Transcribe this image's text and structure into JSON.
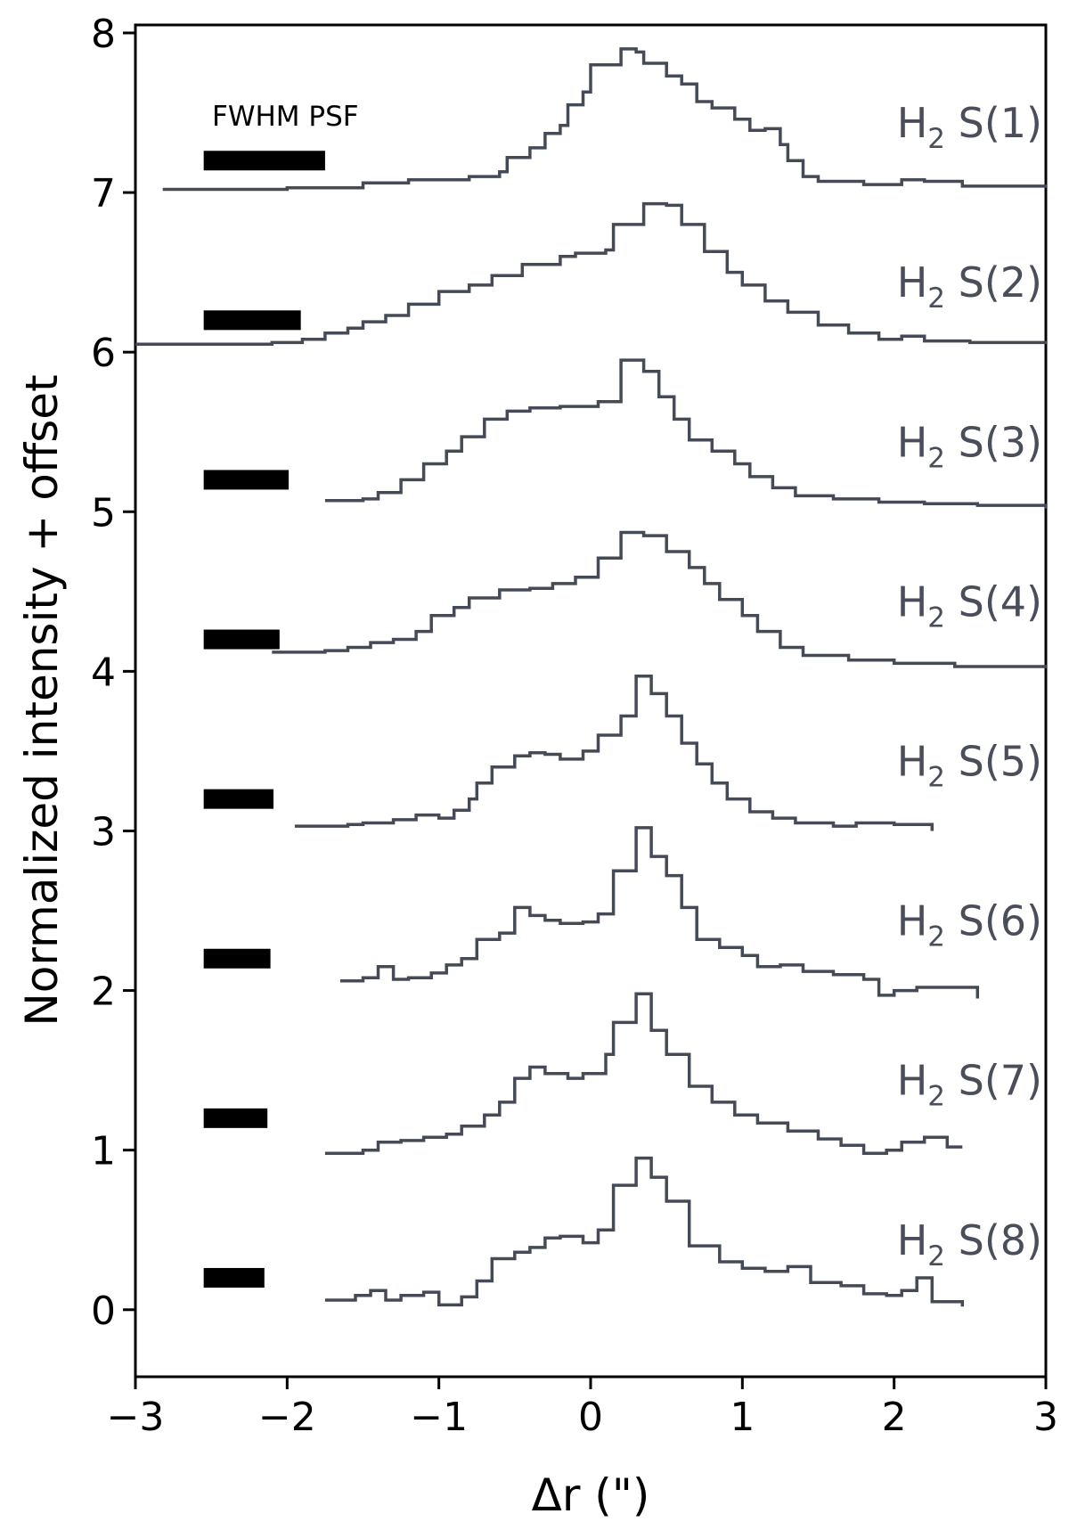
{
  "chart_data": {
    "type": "line",
    "title": "",
    "xlabel": "Δr (\")",
    "ylabel": "Normalized intensity + offset",
    "xlim": [
      -3,
      3
    ],
    "ylim": [
      -0.42,
      8.05
    ],
    "x_ticks": [
      -3,
      -2,
      -1,
      0,
      1,
      2,
      3
    ],
    "x_tick_labels": [
      "−3",
      "−2",
      "−1",
      "0",
      "1",
      "2",
      "3"
    ],
    "y_ticks": [
      0,
      1,
      2,
      3,
      4,
      5,
      6,
      7,
      8
    ],
    "y_tick_labels": [
      "0",
      "1",
      "2",
      "3",
      "4",
      "5",
      "6",
      "7",
      "8"
    ],
    "psf_label": "FWHM PSF",
    "line_color": "#454a57",
    "psf_color": "#000000",
    "series": [
      {
        "label_main": "H",
        "label_sub": "2",
        "label_rest": " S(1)",
        "offset": 7,
        "psf_width": 0.8,
        "points": [
          [
            -2.82,
            7.02
          ],
          [
            -2.0,
            7.03
          ],
          [
            -1.5,
            7.06
          ],
          [
            -1.2,
            7.08
          ],
          [
            -0.8,
            7.1
          ],
          [
            -0.6,
            7.13
          ],
          [
            -0.55,
            7.22
          ],
          [
            -0.4,
            7.28
          ],
          [
            -0.3,
            7.37
          ],
          [
            -0.2,
            7.42
          ],
          [
            -0.15,
            7.55
          ],
          [
            -0.05,
            7.63
          ],
          [
            0.0,
            7.8
          ],
          [
            0.2,
            7.9
          ],
          [
            0.3,
            7.88
          ],
          [
            0.35,
            7.81
          ],
          [
            0.5,
            7.73
          ],
          [
            0.6,
            7.68
          ],
          [
            0.7,
            7.57
          ],
          [
            0.8,
            7.53
          ],
          [
            0.95,
            7.46
          ],
          [
            1.05,
            7.39
          ],
          [
            1.15,
            7.4
          ],
          [
            1.25,
            7.3
          ],
          [
            1.3,
            7.2
          ],
          [
            1.4,
            7.1
          ],
          [
            1.5,
            7.07
          ],
          [
            1.8,
            7.05
          ],
          [
            2.05,
            7.08
          ],
          [
            2.2,
            7.07
          ],
          [
            2.45,
            7.04
          ],
          [
            3.0,
            7.03
          ]
        ]
      },
      {
        "label_main": "H",
        "label_sub": "2",
        "label_rest": " S(2)",
        "offset": 6,
        "psf_width": 0.64,
        "points": [
          [
            -3.0,
            6.05
          ],
          [
            -2.5,
            6.05
          ],
          [
            -2.1,
            6.06
          ],
          [
            -1.9,
            6.08
          ],
          [
            -1.75,
            6.12
          ],
          [
            -1.6,
            6.15
          ],
          [
            -1.5,
            6.19
          ],
          [
            -1.35,
            6.23
          ],
          [
            -1.2,
            6.3
          ],
          [
            -1.0,
            6.38
          ],
          [
            -0.8,
            6.42
          ],
          [
            -0.65,
            6.48
          ],
          [
            -0.45,
            6.55
          ],
          [
            -0.3,
            6.55
          ],
          [
            -0.2,
            6.6
          ],
          [
            -0.1,
            6.62
          ],
          [
            0.1,
            6.64
          ],
          [
            0.15,
            6.8
          ],
          [
            0.35,
            6.93
          ],
          [
            0.5,
            6.92
          ],
          [
            0.6,
            6.8
          ],
          [
            0.75,
            6.63
          ],
          [
            0.9,
            6.5
          ],
          [
            1.0,
            6.42
          ],
          [
            1.15,
            6.32
          ],
          [
            1.3,
            6.25
          ],
          [
            1.5,
            6.17
          ],
          [
            1.7,
            6.12
          ],
          [
            1.9,
            6.08
          ],
          [
            2.05,
            6.1
          ],
          [
            2.2,
            6.07
          ],
          [
            2.5,
            6.06
          ],
          [
            3.0,
            6.05
          ]
        ]
      },
      {
        "label_main": "H",
        "label_sub": "2",
        "label_rest": " S(3)",
        "offset": 5,
        "psf_width": 0.56,
        "points": [
          [
            -1.75,
            5.07
          ],
          [
            -1.5,
            5.08
          ],
          [
            -1.4,
            5.12
          ],
          [
            -1.25,
            5.2
          ],
          [
            -1.1,
            5.3
          ],
          [
            -0.95,
            5.38
          ],
          [
            -0.85,
            5.47
          ],
          [
            -0.7,
            5.58
          ],
          [
            -0.55,
            5.63
          ],
          [
            -0.4,
            5.65
          ],
          [
            -0.2,
            5.66
          ],
          [
            0.05,
            5.69
          ],
          [
            0.2,
            5.95
          ],
          [
            0.35,
            5.88
          ],
          [
            0.45,
            5.72
          ],
          [
            0.55,
            5.58
          ],
          [
            0.65,
            5.45
          ],
          [
            0.8,
            5.38
          ],
          [
            0.95,
            5.3
          ],
          [
            1.05,
            5.22
          ],
          [
            1.2,
            5.15
          ],
          [
            1.35,
            5.1
          ],
          [
            1.6,
            5.08
          ],
          [
            1.9,
            5.06
          ],
          [
            2.2,
            5.05
          ],
          [
            2.55,
            5.04
          ],
          [
            3.0,
            5.02
          ]
        ]
      },
      {
        "label_main": "H",
        "label_sub": "2",
        "label_rest": " S(4)",
        "offset": 4,
        "psf_width": 0.5,
        "points": [
          [
            -2.1,
            4.12
          ],
          [
            -1.75,
            4.13
          ],
          [
            -1.6,
            4.15
          ],
          [
            -1.45,
            4.18
          ],
          [
            -1.3,
            4.2
          ],
          [
            -1.15,
            4.25
          ],
          [
            -1.05,
            4.35
          ],
          [
            -0.9,
            4.4
          ],
          [
            -0.8,
            4.46
          ],
          [
            -0.6,
            4.51
          ],
          [
            -0.4,
            4.52
          ],
          [
            -0.25,
            4.55
          ],
          [
            -0.1,
            4.59
          ],
          [
            0.05,
            4.71
          ],
          [
            0.2,
            4.87
          ],
          [
            0.35,
            4.85
          ],
          [
            0.5,
            4.75
          ],
          [
            0.65,
            4.65
          ],
          [
            0.75,
            4.55
          ],
          [
            0.85,
            4.45
          ],
          [
            1.0,
            4.35
          ],
          [
            1.1,
            4.25
          ],
          [
            1.25,
            4.15
          ],
          [
            1.4,
            4.1
          ],
          [
            1.7,
            4.07
          ],
          [
            2.0,
            4.05
          ],
          [
            2.4,
            4.03
          ],
          [
            3.0,
            4.02
          ]
        ]
      },
      {
        "label_main": "H",
        "label_sub": "2",
        "label_rest": " S(5)",
        "offset": 3,
        "psf_width": 0.46,
        "points": [
          [
            -1.95,
            3.03
          ],
          [
            -1.6,
            3.04
          ],
          [
            -1.5,
            3.05
          ],
          [
            -1.3,
            3.07
          ],
          [
            -1.15,
            3.1
          ],
          [
            -1.0,
            3.08
          ],
          [
            -0.9,
            3.13
          ],
          [
            -0.8,
            3.2
          ],
          [
            -0.75,
            3.3
          ],
          [
            -0.65,
            3.4
          ],
          [
            -0.5,
            3.47
          ],
          [
            -0.4,
            3.49
          ],
          [
            -0.3,
            3.48
          ],
          [
            -0.2,
            3.45
          ],
          [
            -0.05,
            3.5
          ],
          [
            0.05,
            3.6
          ],
          [
            0.2,
            3.72
          ],
          [
            0.3,
            3.97
          ],
          [
            0.4,
            3.86
          ],
          [
            0.5,
            3.72
          ],
          [
            0.6,
            3.55
          ],
          [
            0.7,
            3.42
          ],
          [
            0.8,
            3.3
          ],
          [
            0.9,
            3.2
          ],
          [
            1.05,
            3.12
          ],
          [
            1.2,
            3.08
          ],
          [
            1.35,
            3.05
          ],
          [
            1.6,
            3.03
          ],
          [
            1.75,
            3.05
          ],
          [
            2.0,
            3.04
          ],
          [
            2.25,
            3.0
          ]
        ]
      },
      {
        "label_main": "H",
        "label_sub": "2",
        "label_rest": " S(6)",
        "offset": 2,
        "psf_width": 0.44,
        "points": [
          [
            -1.65,
            2.06
          ],
          [
            -1.5,
            2.08
          ],
          [
            -1.4,
            2.15
          ],
          [
            -1.3,
            2.07
          ],
          [
            -1.2,
            2.08
          ],
          [
            -1.05,
            2.11
          ],
          [
            -0.95,
            2.16
          ],
          [
            -0.85,
            2.2
          ],
          [
            -0.75,
            2.32
          ],
          [
            -0.6,
            2.36
          ],
          [
            -0.5,
            2.52
          ],
          [
            -0.4,
            2.47
          ],
          [
            -0.3,
            2.44
          ],
          [
            -0.2,
            2.42
          ],
          [
            -0.05,
            2.43
          ],
          [
            0.05,
            2.48
          ],
          [
            0.15,
            2.75
          ],
          [
            0.3,
            3.02
          ],
          [
            0.4,
            2.84
          ],
          [
            0.5,
            2.72
          ],
          [
            0.6,
            2.52
          ],
          [
            0.7,
            2.32
          ],
          [
            0.85,
            2.27
          ],
          [
            1.0,
            2.22
          ],
          [
            1.1,
            2.15
          ],
          [
            1.25,
            2.16
          ],
          [
            1.4,
            2.12
          ],
          [
            1.6,
            2.1
          ],
          [
            1.8,
            2.07
          ],
          [
            1.9,
            1.97
          ],
          [
            2.0,
            2.0
          ],
          [
            2.15,
            2.02
          ],
          [
            2.55,
            1.95
          ]
        ]
      },
      {
        "label_main": "H",
        "label_sub": "2",
        "label_rest": " S(7)",
        "offset": 1,
        "psf_width": 0.42,
        "points": [
          [
            -1.75,
            0.98
          ],
          [
            -1.5,
            1.0
          ],
          [
            -1.4,
            1.05
          ],
          [
            -1.25,
            1.06
          ],
          [
            -1.1,
            1.08
          ],
          [
            -0.95,
            1.1
          ],
          [
            -0.85,
            1.15
          ],
          [
            -0.7,
            1.22
          ],
          [
            -0.6,
            1.3
          ],
          [
            -0.5,
            1.45
          ],
          [
            -0.4,
            1.52
          ],
          [
            -0.3,
            1.48
          ],
          [
            -0.15,
            1.45
          ],
          [
            -0.05,
            1.48
          ],
          [
            0.1,
            1.6
          ],
          [
            0.15,
            1.8
          ],
          [
            0.3,
            1.98
          ],
          [
            0.4,
            1.75
          ],
          [
            0.5,
            1.6
          ],
          [
            0.65,
            1.4
          ],
          [
            0.8,
            1.3
          ],
          [
            0.95,
            1.22
          ],
          [
            1.1,
            1.17
          ],
          [
            1.3,
            1.12
          ],
          [
            1.5,
            1.07
          ],
          [
            1.65,
            1.03
          ],
          [
            1.8,
            0.98
          ],
          [
            1.95,
            1.0
          ],
          [
            2.05,
            1.05
          ],
          [
            2.2,
            1.08
          ],
          [
            2.35,
            1.02
          ],
          [
            2.45,
            1.02
          ]
        ]
      },
      {
        "label_main": "H",
        "label_sub": "2",
        "label_rest": " S(8)",
        "offset": 0,
        "psf_width": 0.4,
        "points": [
          [
            -1.75,
            0.06
          ],
          [
            -1.55,
            0.09
          ],
          [
            -1.45,
            0.12
          ],
          [
            -1.35,
            0.06
          ],
          [
            -1.25,
            0.09
          ],
          [
            -1.1,
            0.11
          ],
          [
            -1.0,
            0.03
          ],
          [
            -0.85,
            0.08
          ],
          [
            -0.75,
            0.18
          ],
          [
            -0.65,
            0.32
          ],
          [
            -0.5,
            0.36
          ],
          [
            -0.4,
            0.39
          ],
          [
            -0.3,
            0.45
          ],
          [
            -0.2,
            0.46
          ],
          [
            -0.05,
            0.42
          ],
          [
            0.05,
            0.5
          ],
          [
            0.15,
            0.78
          ],
          [
            0.3,
            0.95
          ],
          [
            0.4,
            0.83
          ],
          [
            0.5,
            0.68
          ],
          [
            0.65,
            0.4
          ],
          [
            0.85,
            0.3
          ],
          [
            1.0,
            0.26
          ],
          [
            1.15,
            0.24
          ],
          [
            1.3,
            0.27
          ],
          [
            1.45,
            0.17
          ],
          [
            1.65,
            0.15
          ],
          [
            1.8,
            0.1
          ],
          [
            1.95,
            0.09
          ],
          [
            2.05,
            0.12
          ],
          [
            2.15,
            0.2
          ],
          [
            2.25,
            0.05
          ],
          [
            2.45,
            0.02
          ]
        ]
      }
    ]
  }
}
